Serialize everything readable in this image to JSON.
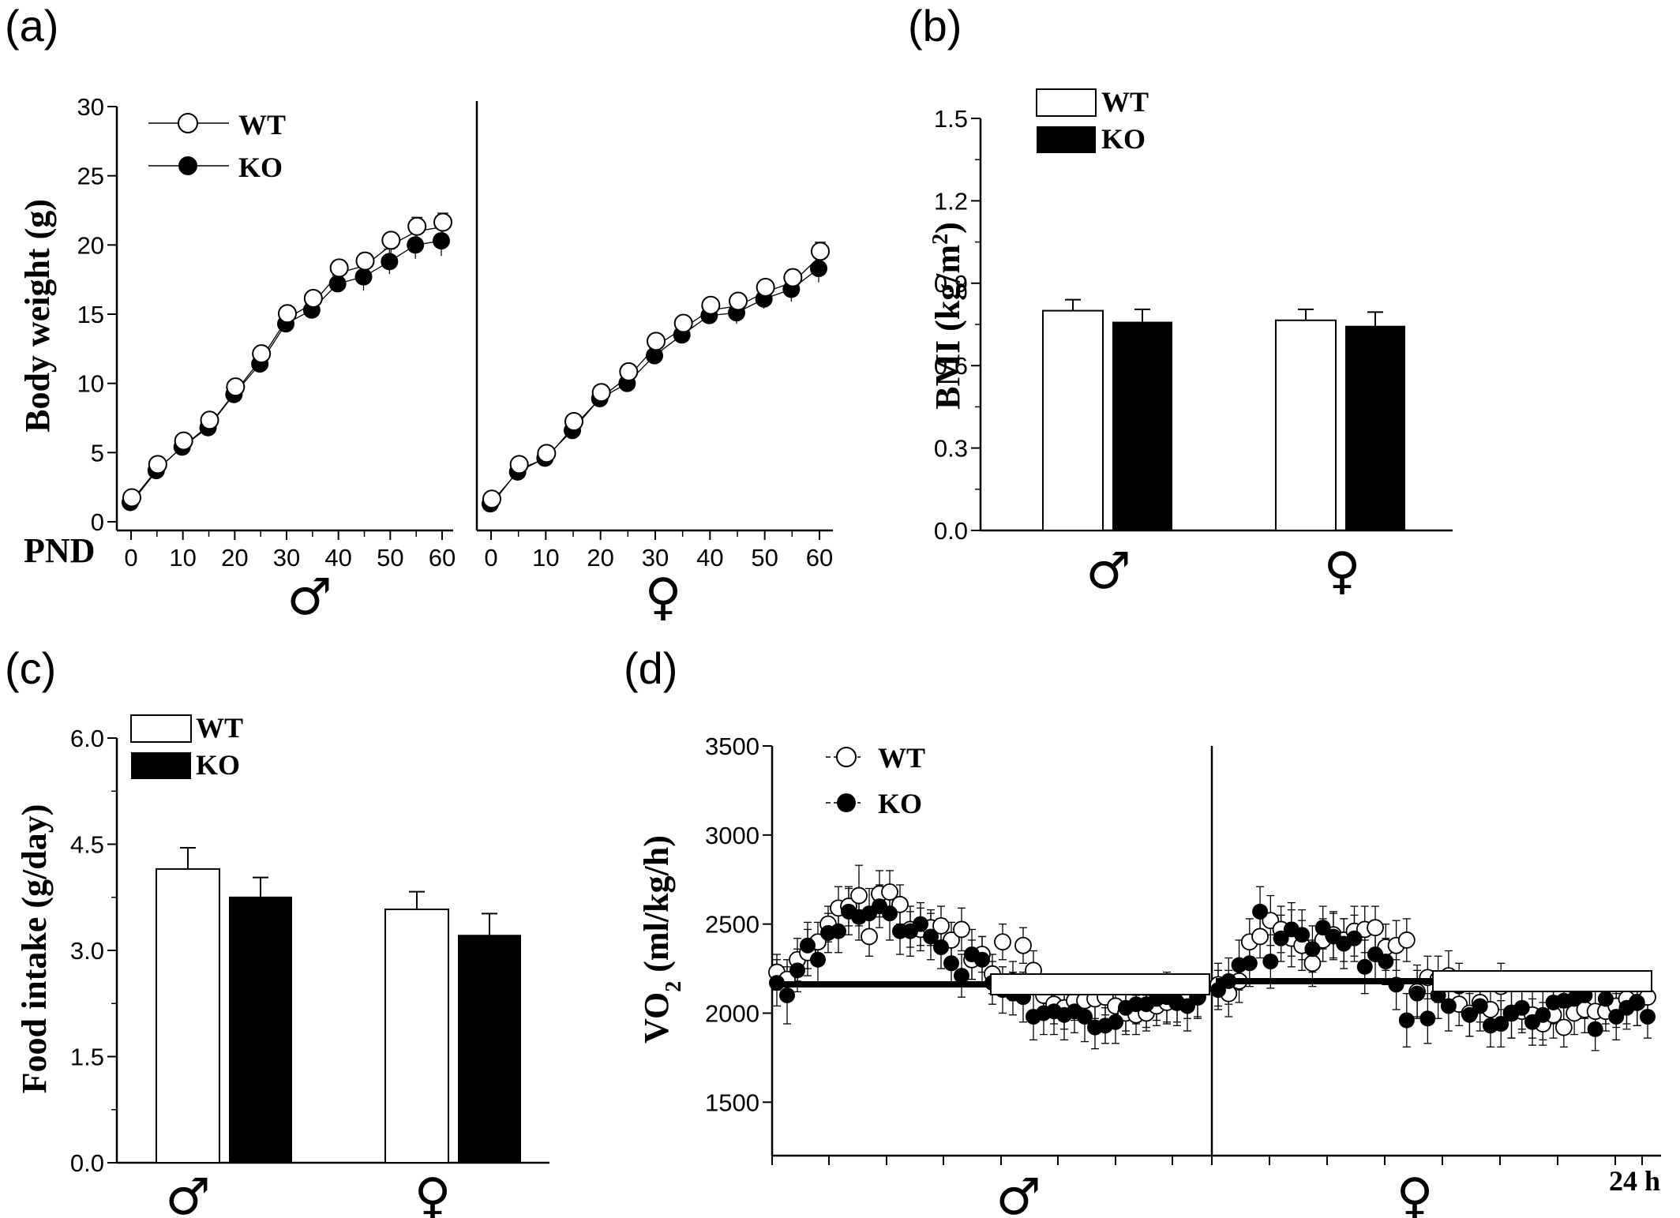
{
  "panels": {
    "a": "(a)",
    "b": "(b)",
    "c": "(c)",
    "d": "(d)"
  },
  "chart_data": [
    {
      "id": "a",
      "type": "line",
      "ylabel": "Body  weight (g)",
      "xlabel": "PND",
      "ylim": [
        0,
        30
      ],
      "yticks": [
        0,
        5,
        10,
        15,
        20,
        25,
        30
      ],
      "xlim": [
        0,
        60
      ],
      "xticks": [
        0,
        10,
        20,
        30,
        40,
        50,
        60
      ],
      "legend": [
        {
          "name": "WT",
          "marker": "open-circle"
        },
        {
          "name": "KO",
          "marker": "filled-circle"
        }
      ],
      "subplots": [
        {
          "sex": "♂",
          "x": [
            0,
            5,
            10,
            15,
            20,
            25,
            30,
            35,
            40,
            45,
            50,
            55,
            60
          ],
          "series": [
            {
              "name": "WT",
              "values": [
                1.4,
                3.8,
                5.5,
                7.0,
                9.4,
                11.8,
                14.7,
                15.8,
                18.0,
                18.5,
                20.0,
                21.0,
                21.3
              ],
              "errors": [
                0.2,
                0.3,
                0.3,
                0.4,
                0.5,
                0.4,
                0.7,
                0.6,
                0.6,
                0.9,
                0.8,
                1.0,
                1.0
              ]
            },
            {
              "name": "KO",
              "values": [
                1.4,
                3.7,
                5.4,
                6.8,
                9.2,
                11.4,
                14.3,
                15.3,
                17.2,
                17.7,
                18.8,
                20.0,
                20.3
              ],
              "errors": [
                0.2,
                0.3,
                0.3,
                0.4,
                0.5,
                0.4,
                0.6,
                0.6,
                0.6,
                1.0,
                0.9,
                1.0,
                1.1
              ]
            }
          ]
        },
        {
          "sex": "♀",
          "x": [
            0,
            5,
            10,
            15,
            20,
            25,
            30,
            35,
            40,
            45,
            50,
            55,
            60
          ],
          "series": [
            {
              "name": "WT",
              "values": [
                1.3,
                3.8,
                4.6,
                6.9,
                9.0,
                10.5,
                12.7,
                14.0,
                15.3,
                15.6,
                16.6,
                17.3,
                19.2
              ],
              "errors": [
                0.2,
                0.3,
                0.3,
                0.4,
                0.4,
                0.5,
                0.7,
                0.7,
                0.7,
                0.8,
                0.8,
                0.9,
                1.0
              ]
            },
            {
              "name": "KO",
              "values": [
                1.3,
                3.6,
                4.6,
                6.6,
                8.9,
                10.0,
                12.0,
                13.5,
                14.9,
                15.1,
                16.1,
                16.8,
                18.3
              ],
              "errors": [
                0.2,
                0.3,
                0.3,
                0.4,
                0.4,
                0.5,
                0.6,
                0.6,
                0.6,
                0.8,
                0.7,
                0.9,
                1.0
              ]
            }
          ]
        }
      ]
    },
    {
      "id": "b",
      "type": "bar",
      "ylabel": "BMI (kg/m",
      "ylabel_sup": "2",
      "ylabel_tail": ")",
      "ylim": [
        0,
        1.5
      ],
      "yticks": [
        "0.0",
        "0.3",
        "0.6",
        "0.9",
        "1.2",
        "1.5"
      ],
      "categories": [
        "♂",
        "♀"
      ],
      "series": [
        {
          "name": "WT",
          "values": [
            0.8,
            0.765
          ],
          "errors": [
            0.04,
            0.04
          ]
        },
        {
          "name": "KO",
          "values": [
            0.76,
            0.745
          ],
          "errors": [
            0.045,
            0.05
          ]
        }
      ]
    },
    {
      "id": "c",
      "type": "bar",
      "ylabel": "Food intake (g/day)",
      "ylim": [
        0,
        6
      ],
      "yticks": [
        "0.0",
        "1.5",
        "3.0",
        "4.5",
        "6.0"
      ],
      "categories": [
        "♂",
        "♀"
      ],
      "series": [
        {
          "name": "WT",
          "values": [
            4.15,
            3.58
          ],
          "errors": [
            0.3,
            0.25
          ]
        },
        {
          "name": "KO",
          "values": [
            3.76,
            3.22
          ],
          "errors": [
            0.27,
            0.3
          ]
        }
      ]
    },
    {
      "id": "d",
      "type": "scatter",
      "ylabel": "VO",
      "ylabel_sub": "2",
      "ylabel_tail": " (ml/kg/h)",
      "ylim": [
        1200,
        3500
      ],
      "yticks": [
        1500,
        2000,
        2500,
        3000,
        3500
      ],
      "x_end_label": "24 h",
      "legend": [
        {
          "name": "WT",
          "marker": "open-circle"
        },
        {
          "name": "KO",
          "marker": "filled-circle"
        }
      ],
      "bar_level": 1500,
      "subplots": [
        {
          "sex": "♂",
          "series": [
            {
              "name": "WT",
              "values": [
                2230,
                2190,
                2300,
                2340,
                2400,
                2500,
                2590,
                2600,
                2660,
                2430,
                2670,
                2680,
                2610,
                2470,
                2470,
                2480,
                2490,
                2410,
                2470,
                2300,
                2330,
                2220,
                2400,
                2180,
                2380,
                2240,
                2100,
                2050,
                2030,
                2070,
                2070,
                2080,
                2090,
                2040,
                2000,
                1990,
                2000,
                2040,
                2060,
                2060,
                2070,
                2090
              ],
              "errors": [
                100,
                110,
                120,
                130,
                110,
                100,
                120,
                110,
                170,
                110,
                130,
                120,
                110,
                100,
                120,
                100,
                110,
                100,
                120,
                110,
                100,
                110,
                100,
                110,
                100,
                110,
                100,
                110,
                120,
                110,
                120,
                110,
                100,
                110,
                120,
                110,
                100,
                110,
                120,
                110,
                100,
                110
              ]
            },
            {
              "name": "KO",
              "values": [
                2170,
                2100,
                2240,
                2380,
                2300,
                2450,
                2460,
                2570,
                2540,
                2560,
                2600,
                2560,
                2460,
                2460,
                2500,
                2430,
                2370,
                2280,
                2210,
                2330,
                2300,
                2170,
                2130,
                2110,
                2090,
                1980,
                2000,
                2010,
                1990,
                2010,
                1980,
                1920,
                1930,
                1950,
                2030,
                2050,
                2050,
                2080,
                2090,
                2060,
                2040,
                2090
              ],
              "errors": [
                130,
                160,
                120,
                130,
                140,
                110,
                120,
                130,
                130,
                140,
                120,
                150,
                130,
                140,
                120,
                130,
                120,
                130,
                120,
                140,
                130,
                120,
                130,
                120,
                140,
                130,
                120,
                130,
                140,
                120,
                140,
                120,
                100,
                120,
                130,
                110,
                130,
                120,
                140,
                130,
                140,
                120
              ]
            }
          ]
        },
        {
          "sex": "♀",
          "series": [
            {
              "name": "WT",
              "values": [
                2160,
                2110,
                2180,
                2400,
                2430,
                2520,
                2470,
                2420,
                2380,
                2280,
                2410,
                2440,
                2410,
                2460,
                2470,
                2480,
                2370,
                2380,
                2410,
                2120,
                2200,
                2190,
                2210,
                2050,
                2000,
                2060,
                2020,
                2150,
                2000,
                2010,
                1990,
                1940,
                1990,
                1920,
                2000,
                2020,
                2010,
                2010,
                2040,
                2080,
                2060,
                2090
              ],
              "errors": [
                120,
                130,
                120,
                130,
                120,
                140,
                130,
                160,
                140,
                130,
                120,
                130,
                120,
                140,
                130,
                120,
                130,
                140,
                120,
                150,
                120,
                130,
                140,
                120,
                130,
                110,
                120,
                130,
                140,
                120,
                130,
                120,
                130,
                110,
                120,
                130,
                120,
                110,
                120,
                140,
                130,
                120
              ]
            },
            {
              "name": "KO",
              "values": [
                2130,
                2180,
                2270,
                2280,
                2570,
                2290,
                2420,
                2470,
                2440,
                2360,
                2480,
                2430,
                2390,
                2420,
                2260,
                2330,
                2290,
                2160,
                1960,
                2110,
                1970,
                2100,
                2040,
                2150,
                1990,
                2040,
                1930,
                1940,
                2000,
                2030,
                1950,
                1990,
                2060,
                2070,
                2080,
                2100,
                1910,
                2080,
                1980,
                2030,
                2060,
                1980
              ],
              "errors": [
                110,
                130,
                140,
                130,
                140,
                150,
                130,
                150,
                140,
                130,
                120,
                130,
                140,
                130,
                150,
                140,
                130,
                140,
                150,
                130,
                140,
                130,
                140,
                130,
                120,
                140,
                120,
                130,
                140,
                120,
                130,
                140,
                120,
                130,
                110,
                130,
                120,
                140,
                130,
                120,
                130,
                120
              ]
            }
          ]
        }
      ]
    }
  ]
}
